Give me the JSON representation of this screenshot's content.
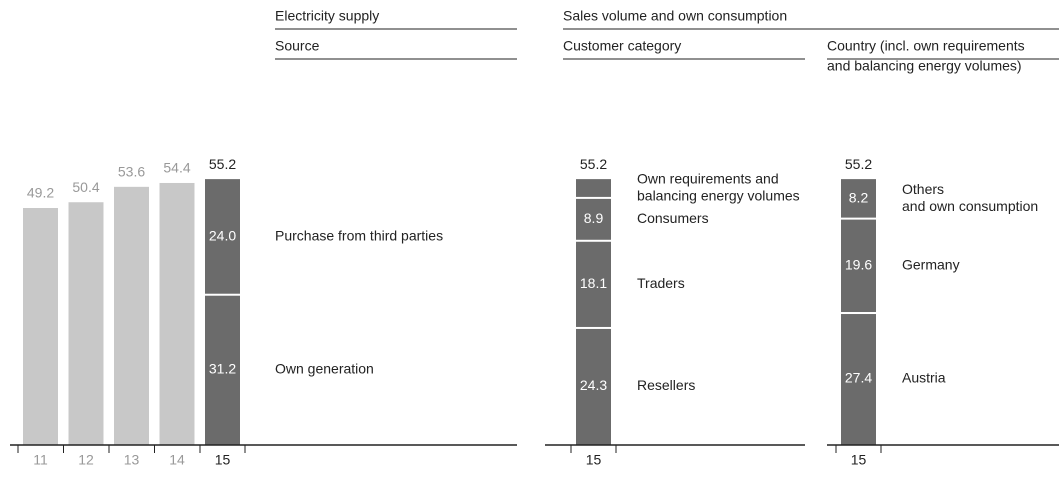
{
  "headers": [
    "Electricity supply",
    "Sales volume and own consumption"
  ],
  "chart_data": [
    {
      "type": "bar",
      "title": [
        "Source"
      ],
      "categories": [
        "11",
        "12",
        "13",
        "14",
        "15"
      ],
      "values": [
        49.2,
        50.4,
        53.6,
        54.4,
        55.2
      ],
      "ylim": [
        0,
        60
      ],
      "color": "#c8c8c8",
      "highlight_color": "#6b6b6b",
      "segments": [
        {
          "name": [
            "Own generation"
          ],
          "value": 31.2
        },
        {
          "name": [
            "Purchase from third parties"
          ],
          "value": 24.0,
          "value_label": "24.0"
        }
      ]
    },
    {
      "type": "bar",
      "title": [
        "Customer category"
      ],
      "categories": [
        "15"
      ],
      "values": [
        55.2
      ],
      "ylim": [
        0,
        60
      ],
      "color": "#c8c8c8",
      "highlight_color": "#6b6b6b",
      "segments": [
        {
          "name": [
            "Resellers"
          ],
          "value": 24.3
        },
        {
          "name": [
            "Traders"
          ],
          "value": 18.1
        },
        {
          "name": [
            "Consumers"
          ],
          "value": 8.9,
          "value_label": "8.9"
        },
        {
          "name": [
            "Own requirements and",
            "balancing energy volumes"
          ],
          "value": 3.9
        }
      ]
    },
    {
      "type": "bar",
      "title": [
        "Country (incl. own requirements",
        "and balancing energy volumes)"
      ],
      "categories": [
        "15"
      ],
      "values": [
        55.2
      ],
      "ylim": [
        0,
        60
      ],
      "color": "#c8c8c8",
      "highlight_color": "#6b6b6b",
      "segments": [
        {
          "name": [
            "Austria"
          ],
          "value": 27.4
        },
        {
          "name": [
            "Germany"
          ],
          "value": 19.6
        },
        {
          "name": [
            "Others",
            "and own consumption"
          ],
          "value": 8.2
        }
      ]
    }
  ]
}
